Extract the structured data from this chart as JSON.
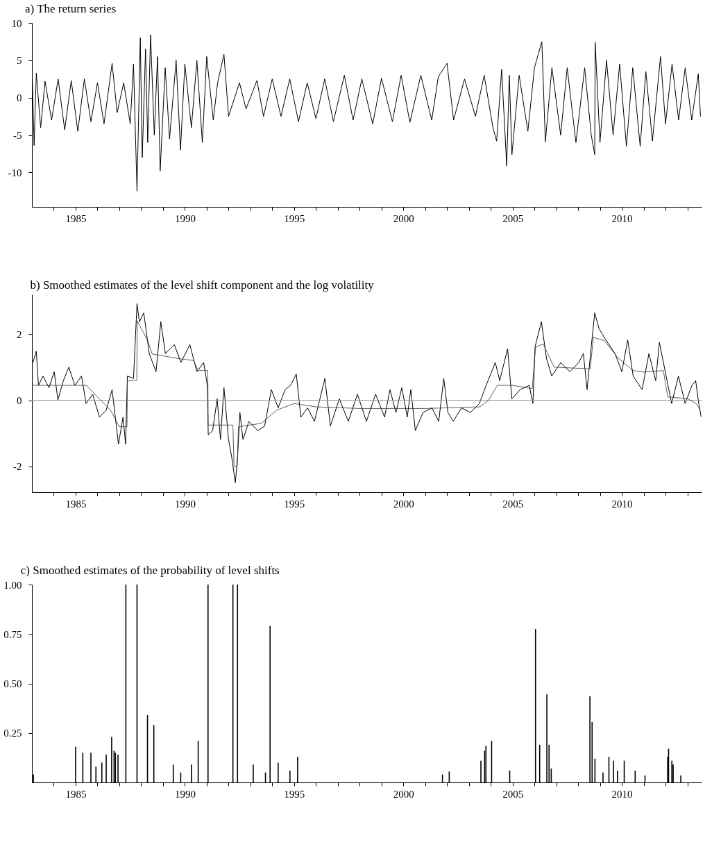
{
  "chart_data": [
    {
      "type": "line",
      "title": "a) The return series",
      "xlim": [
        1983,
        2013.65
      ],
      "ylim": [
        -14.6,
        10
      ],
      "xticks": [
        {
          "value": 1984,
          "label": null
        },
        1985,
        {
          "value": 1986,
          "label": null
        },
        {
          "value": 1987,
          "label": null
        },
        {
          "value": 1988,
          "label": null
        },
        {
          "value": 1989,
          "label": null
        },
        1990,
        {
          "value": 1991,
          "label": null
        },
        {
          "value": 1992,
          "label": null
        },
        {
          "value": 1993,
          "label": null
        },
        {
          "value": 1994,
          "label": null
        },
        1995,
        {
          "value": 1996,
          "label": null
        },
        {
          "value": 1997,
          "label": null
        },
        {
          "value": 1998,
          "label": null
        },
        {
          "value": 1999,
          "label": null
        },
        2000,
        {
          "value": 2001,
          "label": null
        },
        {
          "value": 2002,
          "label": null
        },
        {
          "value": 2003,
          "label": null
        },
        {
          "value": 2004,
          "label": null
        },
        2005,
        {
          "value": 2006,
          "label": null
        },
        {
          "value": 2007,
          "label": null
        },
        {
          "value": 2008,
          "label": null
        },
        {
          "value": 2009,
          "label": null
        },
        2010,
        {
          "value": 2011,
          "label": null
        },
        {
          "value": 2012,
          "label": null
        },
        {
          "value": 2013,
          "label": null
        }
      ],
      "yticks": [
        -10,
        -5,
        0,
        5,
        10
      ],
      "grid": false,
      "series": [
        {
          "color": "#000000",
          "x": [
            1983.02,
            1983.1,
            1983.2,
            1983.4,
            1983.6,
            1983.9,
            1984.2,
            1984.5,
            1984.8,
            1985.1,
            1985.4,
            1985.7,
            1986.0,
            1986.3,
            1986.67,
            1986.9,
            1987.2,
            1987.5,
            1987.65,
            1987.81,
            1987.96,
            1988.05,
            1988.2,
            1988.3,
            1988.43,
            1988.6,
            1988.75,
            1988.87,
            1989.1,
            1989.3,
            1989.6,
            1989.8,
            1990.0,
            1990.3,
            1990.55,
            1990.8,
            1991.0,
            1991.3,
            1991.5,
            1991.79,
            1992.0,
            1992.5,
            1992.8,
            1993.3,
            1993.6,
            1994.0,
            1994.4,
            1994.8,
            1995.2,
            1995.6,
            1996.0,
            1996.4,
            1996.8,
            1997.3,
            1997.7,
            1998.1,
            1998.6,
            1999.0,
            1999.5,
            1999.9,
            2000.3,
            2000.8,
            2001.3,
            2001.6,
            2002.0,
            2002.3,
            2002.8,
            2003.3,
            2003.7,
            2004.1,
            2004.27,
            2004.5,
            2004.73,
            2004.85,
            2004.97,
            2005.3,
            2005.7,
            2006.0,
            2006.34,
            2006.5,
            2006.8,
            2007.2,
            2007.5,
            2007.9,
            2008.3,
            2008.6,
            2008.76,
            2008.78,
            2009.0,
            2009.3,
            2009.6,
            2009.9,
            2010.21,
            2010.5,
            2010.84,
            2011.1,
            2011.4,
            2011.77,
            2012.0,
            2012.3,
            2012.6,
            2012.9,
            2013.2,
            2013.5,
            2013.6
          ],
          "values": [
            2.5,
            -6.4,
            3.3,
            -4,
            2.2,
            -3,
            2.5,
            -4.3,
            2.3,
            -4.5,
            2.5,
            -3.2,
            2,
            -3.5,
            4.6,
            -2,
            2,
            -3.5,
            4.5,
            -12.5,
            8,
            -8,
            6.5,
            -6,
            8.4,
            -5,
            5.5,
            -9.8,
            4,
            -5.5,
            5,
            -7,
            4.5,
            -4,
            5,
            -6,
            5.5,
            -3,
            2,
            5.8,
            -2.5,
            2,
            -1.5,
            2.3,
            -2.5,
            2.5,
            -2.5,
            2.5,
            -3.2,
            2,
            -2.8,
            2.5,
            -3.2,
            3,
            -3,
            2.5,
            -3.5,
            2.6,
            -3.2,
            3,
            -3.3,
            3,
            -3,
            2.8,
            4.6,
            -3,
            2.5,
            -2.5,
            3,
            -4,
            -5.8,
            3.8,
            -9.1,
            3,
            -7.6,
            3,
            -4.5,
            4,
            7.5,
            -5.9,
            4,
            -5,
            4,
            -6,
            4,
            -5,
            -7.6,
            7.4,
            -6,
            5,
            -5,
            4.5,
            -6.5,
            4,
            -6.5,
            3.5,
            -5.8,
            5.5,
            -3.5,
            4.5,
            -3,
            4,
            -3,
            3.2,
            -2.5
          ]
        }
      ]
    },
    {
      "type": "line",
      "title": "b) Smoothed estimates of the level shift component and the log volatility",
      "xlim": [
        1983,
        2013.65
      ],
      "ylim": [
        -2.78,
        3.2
      ],
      "xticks": [
        {
          "value": 1984,
          "label": null
        },
        1985,
        {
          "value": 1986,
          "label": null
        },
        {
          "value": 1987,
          "label": null
        },
        {
          "value": 1988,
          "label": null
        },
        {
          "value": 1989,
          "label": null
        },
        1990,
        {
          "value": 1991,
          "label": null
        },
        {
          "value": 1992,
          "label": null
        },
        {
          "value": 1993,
          "label": null
        },
        {
          "value": 1994,
          "label": null
        },
        1995,
        {
          "value": 1996,
          "label": null
        },
        {
          "value": 1997,
          "label": null
        },
        {
          "value": 1998,
          "label": null
        },
        {
          "value": 1999,
          "label": null
        },
        2000,
        {
          "value": 2001,
          "label": null
        },
        {
          "value": 2002,
          "label": null
        },
        {
          "value": 2003,
          "label": null
        },
        {
          "value": 2004,
          "label": null
        },
        2005,
        {
          "value": 2006,
          "label": null
        },
        {
          "value": 2007,
          "label": null
        },
        {
          "value": 2008,
          "label": null
        },
        {
          "value": 2009,
          "label": null
        },
        2010,
        {
          "value": 2011,
          "label": null
        },
        {
          "value": 2012,
          "label": null
        },
        {
          "value": 2013,
          "label": null
        }
      ],
      "yticks": [
        -2,
        0,
        2
      ],
      "grid": false,
      "ref_lines": [
        {
          "axis": "y",
          "value": 0,
          "color": "#999999"
        }
      ],
      "series": [
        {
          "color": "#000000",
          "x": [
            1983.05,
            1983.2,
            1983.3,
            1983.51,
            1983.78,
            1984.02,
            1984.19,
            1984.44,
            1984.69,
            1984.96,
            1985.27,
            1985.48,
            1985.78,
            1986.09,
            1986.4,
            1986.67,
            1986.96,
            1987.17,
            1987.29,
            1987.37,
            1987.65,
            1987.81,
            1987.92,
            1988.12,
            1988.37,
            1988.68,
            1988.9,
            1989.11,
            1989.52,
            1989.82,
            1990.23,
            1990.55,
            1990.86,
            1991.03,
            1991.07,
            1991.27,
            1991.48,
            1991.63,
            1991.79,
            1992.0,
            1992.15,
            1992.31,
            1992.41,
            1992.52,
            1992.66,
            1992.93,
            1993.34,
            1993.65,
            1993.96,
            1994.27,
            1994.59,
            1994.84,
            1995.1,
            1995.31,
            1995.62,
            1995.93,
            1996.41,
            1996.66,
            1997.07,
            1997.48,
            1997.9,
            1998.31,
            1998.73,
            1999.14,
            1999.39,
            1999.66,
            1999.93,
            2000.18,
            2000.34,
            2000.55,
            2000.9,
            2001.31,
            2001.62,
            2001.85,
            2002.04,
            2002.28,
            2002.66,
            2003.07,
            2003.48,
            2003.79,
            2004.21,
            2004.41,
            2004.77,
            2004.97,
            2005.34,
            2005.76,
            2005.93,
            2006.03,
            2006.32,
            2006.55,
            2006.79,
            2007.21,
            2007.62,
            2008.03,
            2008.24,
            2008.41,
            2008.61,
            2008.76,
            2008.96,
            2009.27,
            2009.69,
            2010.0,
            2010.27,
            2010.52,
            2010.93,
            2011.24,
            2011.55,
            2011.72,
            2012.07,
            2012.28,
            2012.59,
            2012.9,
            2013.21,
            2013.38,
            2013.52,
            2013.63
          ],
          "values": [
            1.14,
            1.48,
            0.45,
            0.73,
            0.38,
            0.86,
            0.01,
            0.59,
            1.0,
            0.45,
            0.73,
            -0.1,
            0.18,
            -0.51,
            -0.3,
            0.32,
            -1.33,
            -0.51,
            -1.33,
            0.73,
            0.66,
            2.92,
            2.37,
            2.64,
            1.41,
            0.86,
            2.37,
            1.41,
            1.68,
            1.14,
            1.68,
            0.86,
            1.14,
            0.45,
            -1.05,
            -0.92,
            0.04,
            -1.19,
            0.38,
            -1.19,
            -1.74,
            -2.49,
            -1.74,
            -0.37,
            -1.19,
            -0.64,
            -0.92,
            -0.78,
            0.32,
            -0.23,
            0.32,
            0.45,
            0.79,
            -0.51,
            -0.23,
            -0.64,
            0.66,
            -0.78,
            0.04,
            -0.64,
            0.18,
            -0.64,
            0.18,
            -0.51,
            0.32,
            -0.37,
            0.38,
            -0.51,
            0.32,
            -0.92,
            -0.37,
            -0.23,
            -0.64,
            0.66,
            -0.37,
            -0.64,
            -0.23,
            -0.37,
            -0.1,
            0.45,
            1.14,
            0.59,
            1.55,
            0.04,
            0.32,
            0.45,
            -0.1,
            1.62,
            2.37,
            1.27,
            0.73,
            1.14,
            0.86,
            1.14,
            1.41,
            0.32,
            1.68,
            2.64,
            2.16,
            1.82,
            1.41,
            0.86,
            1.82,
            0.73,
            0.32,
            1.41,
            0.59,
            1.75,
            0.59,
            -0.1,
            0.73,
            -0.1,
            0.45,
            0.59,
            -0.1,
            -0.5
          ]
        },
        {
          "color": "#333333",
          "x": [
            1983.0,
            1985.5,
            1986.0,
            1986.6,
            1987.0,
            1987.35,
            1987.37,
            1987.8,
            1987.82,
            1988.3,
            1988.5,
            1989.8,
            1990.4,
            1990.6,
            1991.05,
            1991.07,
            1992.2,
            1992.25,
            1992.4,
            1992.45,
            1993.5,
            1994.2,
            1995.0,
            1996.0,
            1998.0,
            2001.0,
            2003.5,
            2003.9,
            2004.3,
            2005.0,
            2005.9,
            2006.05,
            2006.4,
            2006.9,
            2008.55,
            2008.7,
            2009.2,
            2009.8,
            2010.5,
            2011.0,
            2011.9,
            2012.1,
            2013.0,
            2013.4,
            2013.6
          ],
          "values": [
            0.45,
            0.45,
            0.1,
            -0.3,
            -0.8,
            -0.8,
            0.6,
            0.6,
            2.4,
            1.8,
            1.4,
            1.25,
            1.2,
            0.9,
            0.9,
            -0.75,
            -0.75,
            -2.0,
            -2.0,
            -0.8,
            -0.7,
            -0.3,
            -0.1,
            -0.2,
            -0.25,
            -0.25,
            -0.2,
            0.0,
            0.45,
            0.45,
            0.35,
            1.6,
            1.7,
            1.0,
            0.95,
            1.9,
            1.8,
            1.3,
            0.9,
            0.85,
            0.9,
            0.1,
            0.05,
            -0.1,
            -0.3
          ]
        }
      ]
    },
    {
      "type": "bar",
      "title": "c) Smoothed estimates of the probability of level shifts",
      "xlim": [
        1983,
        2013.65
      ],
      "ylim": [
        0,
        1
      ],
      "xticks": [
        {
          "value": 1984,
          "label": null
        },
        1985,
        {
          "value": 1986,
          "label": null
        },
        {
          "value": 1987,
          "label": null
        },
        {
          "value": 1988,
          "label": null
        },
        {
          "value": 1989,
          "label": null
        },
        1990,
        {
          "value": 1991,
          "label": null
        },
        {
          "value": 1992,
          "label": null
        },
        {
          "value": 1993,
          "label": null
        },
        {
          "value": 1994,
          "label": null
        },
        1995,
        {
          "value": 1996,
          "label": null
        },
        {
          "value": 1997,
          "label": null
        },
        {
          "value": 1998,
          "label": null
        },
        {
          "value": 1999,
          "label": null
        },
        2000,
        {
          "value": 2001,
          "label": null
        },
        {
          "value": 2002,
          "label": null
        },
        {
          "value": 2003,
          "label": null
        },
        {
          "value": 2004,
          "label": null
        },
        2005,
        {
          "value": 2006,
          "label": null
        },
        {
          "value": 2007,
          "label": null
        },
        {
          "value": 2008,
          "label": null
        },
        {
          "value": 2009,
          "label": null
        },
        2010,
        {
          "value": 2011,
          "label": null
        },
        {
          "value": 2012,
          "label": null
        },
        {
          "value": 2013,
          "label": null
        }
      ],
      "yticks": [
        {
          "value": 0.25,
          "label": "0.25"
        },
        {
          "value": 0.5,
          "label": "0.50"
        },
        {
          "value": 0.75,
          "label": "0.75"
        },
        {
          "value": 1,
          "label": "1.00"
        }
      ],
      "grid": false,
      "series": [
        {
          "color": "#000000",
          "x": [
            1983.07,
            1985.0,
            1985.33,
            1985.7,
            1985.93,
            1986.2,
            1986.4,
            1986.65,
            1986.76,
            1986.82,
            1986.94,
            1987.3,
            1987.81,
            1988.29,
            1988.58,
            1989.47,
            1989.81,
            1990.3,
            1990.61,
            1991.06,
            1992.2,
            1992.41,
            1993.13,
            1993.69,
            1993.9,
            1994.27,
            1994.81,
            1995.16,
            2001.79,
            2002.1,
            2003.55,
            2003.72,
            2003.78,
            2004.04,
            2004.87,
            2006.05,
            2006.24,
            2006.57,
            2006.67,
            2006.77,
            2008.54,
            2008.64,
            2008.77,
            2009.14,
            2009.41,
            2009.62,
            2009.8,
            2010.11,
            2010.61,
            2011.06,
            2012.1,
            2012.14,
            2012.29,
            2012.35,
            2012.7
          ],
          "values": [
            0.04,
            0.18,
            0.15,
            0.15,
            0.08,
            0.1,
            0.14,
            0.23,
            0.16,
            0.15,
            0.14,
            1.0,
            1.0,
            0.34,
            0.29,
            0.09,
            0.05,
            0.09,
            0.21,
            1.0,
            1.0,
            1.0,
            0.09,
            0.05,
            0.79,
            0.1,
            0.06,
            0.13,
            0.04,
            0.055,
            0.11,
            0.16,
            0.185,
            0.21,
            0.06,
            0.775,
            0.19,
            0.445,
            0.19,
            0.07,
            0.435,
            0.305,
            0.12,
            0.05,
            0.13,
            0.11,
            0.06,
            0.11,
            0.06,
            0.035,
            0.13,
            0.17,
            0.11,
            0.09,
            0.035
          ]
        }
      ]
    }
  ]
}
